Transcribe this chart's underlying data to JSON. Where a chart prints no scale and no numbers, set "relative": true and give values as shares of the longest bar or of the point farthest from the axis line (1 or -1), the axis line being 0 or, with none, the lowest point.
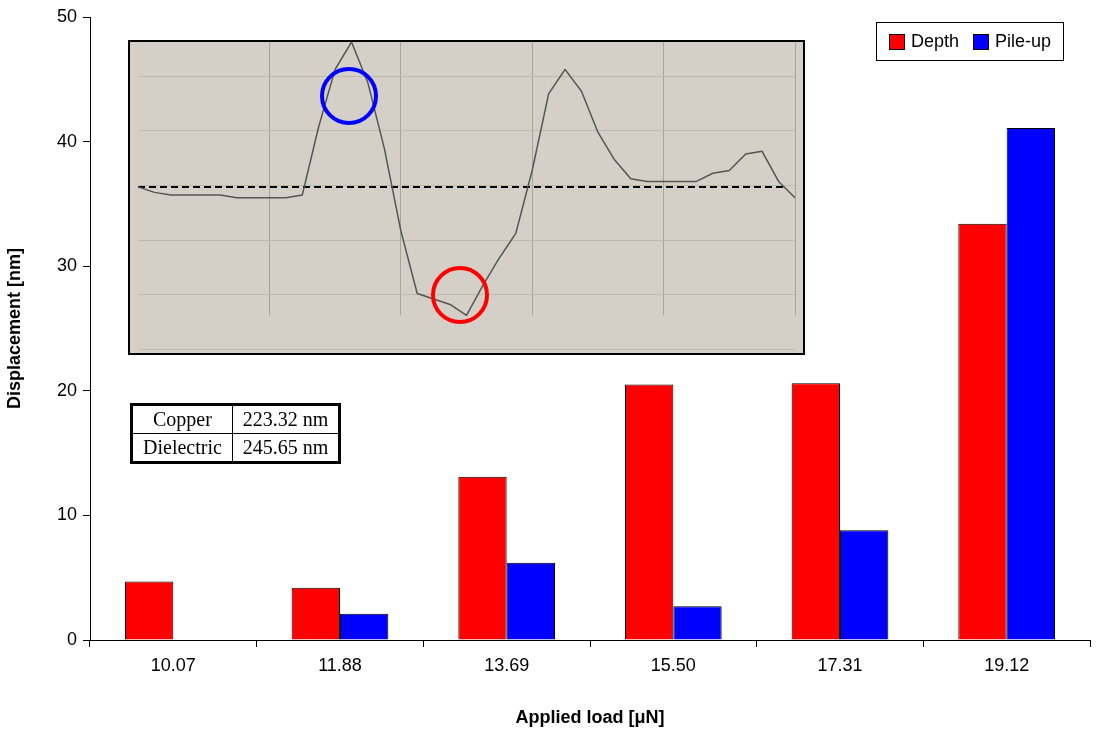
{
  "chart_data": [
    {
      "type": "bar",
      "xlabel": "Applied load [μN]",
      "ylabel": "Displacement [nm]",
      "categories": [
        "10.07",
        "11.88",
        "13.69",
        "15.50",
        "17.31",
        "19.12"
      ],
      "series": [
        {
          "name": "Depth",
          "color": "#ff0000",
          "values": [
            4.7,
            4.2,
            13.1,
            20.5,
            20.6,
            33.4
          ]
        },
        {
          "name": "Pile-up",
          "color": "#0000ff",
          "values": [
            null,
            2.1,
            6.2,
            2.7,
            8.8,
            41.1
          ]
        }
      ],
      "ylim": [
        0,
        50
      ],
      "yticks": [
        0,
        10,
        20,
        30,
        40,
        50
      ],
      "grid": false,
      "legend": "top right",
      "annotations": [
        "Copper",
        "223.32 nm",
        "Dielectric",
        "245.65 nm"
      ]
    },
    {
      "type": "line",
      "relative": true,
      "grid": true,
      "marker": "none",
      "line_style": "solid",
      "categories": [
        null,
        null,
        null,
        null,
        null,
        null,
        null,
        null,
        null,
        null,
        null,
        null,
        null,
        null,
        null,
        null,
        null,
        null,
        null,
        null,
        null,
        null,
        null,
        null,
        null,
        null,
        null,
        null,
        null,
        null,
        null,
        null,
        null,
        null,
        null,
        null,
        null,
        null,
        null,
        null,
        null
      ],
      "series": [
        {
          "color": "#555555",
          "values": [
            0.47,
            0.45,
            0.44,
            0.44,
            0.44,
            0.44,
            0.43,
            0.43,
            0.43,
            0.43,
            0.44,
            0.69,
            0.9,
            1.0,
            0.85,
            0.61,
            0.31,
            0.08,
            0.06,
            0.04,
            0.0,
            0.11,
            0.21,
            0.3,
            0.53,
            0.81,
            0.9,
            0.82,
            0.67,
            0.57,
            0.5,
            0.49,
            0.49,
            0.49,
            0.49,
            0.52,
            0.53,
            0.59,
            0.6,
            0.49,
            0.43
          ]
        }
      ],
      "ref_lines": [
        {
          "axis": "y",
          "value": 0.47,
          "color": "#000000",
          "line_style": "dashed"
        }
      ]
    }
  ]
}
